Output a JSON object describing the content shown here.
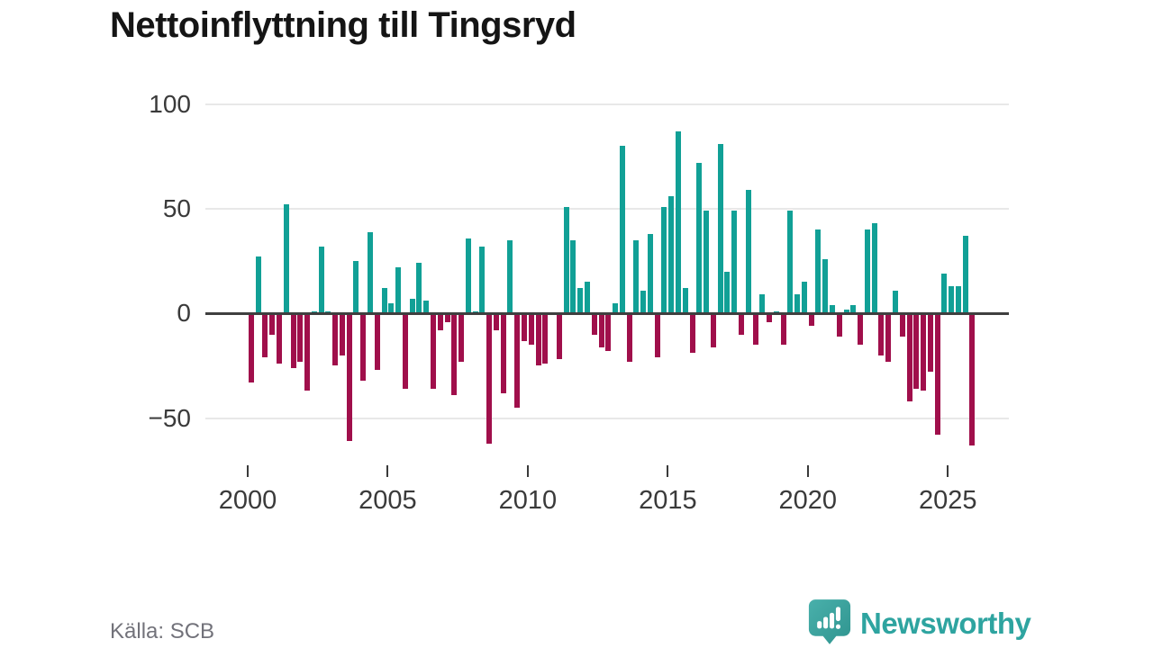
{
  "page": {
    "title": "Nettoinflyttning till Tingsryd",
    "source": "Källa: SCB"
  },
  "brand": {
    "name": "Newsworthy",
    "icon": "bar-chart-speech-bubble-icon",
    "teal": "#2ea4a0"
  },
  "colors": {
    "positive_bar": "#11a096",
    "negative_bar": "#a00f4b",
    "zero_line": "#3f3f3f",
    "gridline": "#e8e8e8",
    "axis_text": "#3a3a3a",
    "title_text": "#151515",
    "source_text": "#72727a"
  },
  "chart_data": {
    "type": "bar",
    "title": "Nettoinflyttning till Tingsryd",
    "frequency": "quarterly",
    "start": "2000Q1",
    "end": "2025Q4",
    "grid": "horizontal",
    "legend": "none",
    "y_ticks": [
      100,
      50,
      0,
      -50
    ],
    "y_tick_labels": [
      "100",
      "50",
      "0",
      "−50"
    ],
    "ylim": [
      -70,
      105
    ],
    "x_tick_years": [
      2000,
      2005,
      2010,
      2015,
      2020,
      2025
    ],
    "x_tick_labels": [
      "2000",
      "2005",
      "2010",
      "2015",
      "2020",
      "2025"
    ],
    "values_by_year": {
      "2000": [
        -33,
        27,
        -21,
        -10
      ],
      "2001": [
        -24,
        52,
        -26,
        -23
      ],
      "2002": [
        -37,
        1,
        32,
        1
      ],
      "2003": [
        -25,
        -20,
        -61,
        25
      ],
      "2004": [
        -32,
        39,
        -27,
        12
      ],
      "2005": [
        5,
        22,
        -36,
        7
      ],
      "2006": [
        24,
        6,
        -36,
        -8
      ],
      "2007": [
        -4,
        -39,
        -23,
        36
      ],
      "2008": [
        1,
        32,
        -62,
        -8
      ],
      "2009": [
        -38,
        35,
        -45,
        -13
      ],
      "2010": [
        -15,
        -25,
        -24,
        0
      ],
      "2011": [
        -22,
        51,
        35,
        12
      ],
      "2012": [
        15,
        -10,
        -16,
        -18
      ],
      "2013": [
        5,
        80,
        -23,
        35
      ],
      "2014": [
        11,
        38,
        -21,
        51
      ],
      "2015": [
        56,
        87,
        12,
        -19
      ],
      "2016": [
        72,
        49,
        -16,
        81
      ],
      "2017": [
        20,
        49,
        -10,
        59
      ],
      "2018": [
        -15,
        9,
        -4,
        1
      ],
      "2019": [
        -15,
        49,
        9,
        15
      ],
      "2020": [
        -6,
        40,
        26,
        4
      ],
      "2021": [
        -11,
        2,
        4,
        -15
      ],
      "2022": [
        40,
        43,
        -20,
        -23
      ],
      "2023": [
        11,
        -11,
        -42,
        -36
      ],
      "2024": [
        -37,
        -28,
        -58,
        19
      ],
      "2025": [
        13,
        13,
        37,
        -63
      ]
    }
  }
}
